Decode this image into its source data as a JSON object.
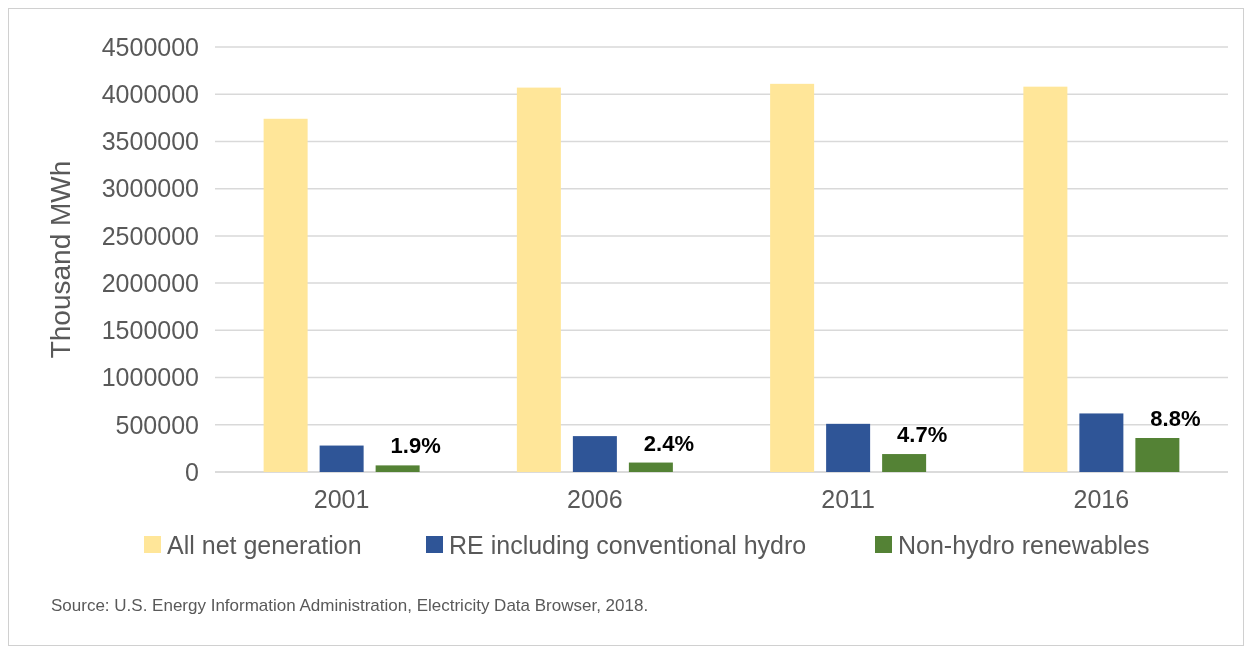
{
  "chart_data": {
    "type": "bar",
    "ylabel": "Thousand MWh",
    "categories": [
      "2001",
      "2006",
      "2011",
      "2016"
    ],
    "series": [
      {
        "name": "All net generation",
        "color": "#ffe699",
        "values": [
          3740000,
          4070000,
          4110000,
          4080000
        ]
      },
      {
        "name": "RE including conventional hydro",
        "color": "#2f5597",
        "values": [
          280000,
          380000,
          510000,
          620000
        ]
      },
      {
        "name": "Non-hydro renewables",
        "color": "#548235",
        "values": [
          70000,
          100000,
          190000,
          360000
        ]
      }
    ],
    "ylim": [
      0,
      4500000
    ],
    "yticks": [
      0,
      500000,
      1000000,
      1500000,
      2000000,
      2500000,
      3000000,
      3500000,
      4000000,
      4500000
    ],
    "grid": "y",
    "legend": "bottom",
    "annotations": [
      "1.9%",
      "2.4%",
      "4.7%",
      "8.8%",
      "Source: U.S. Energy Information Administration, Electricity Data Browser, 2018."
    ]
  }
}
